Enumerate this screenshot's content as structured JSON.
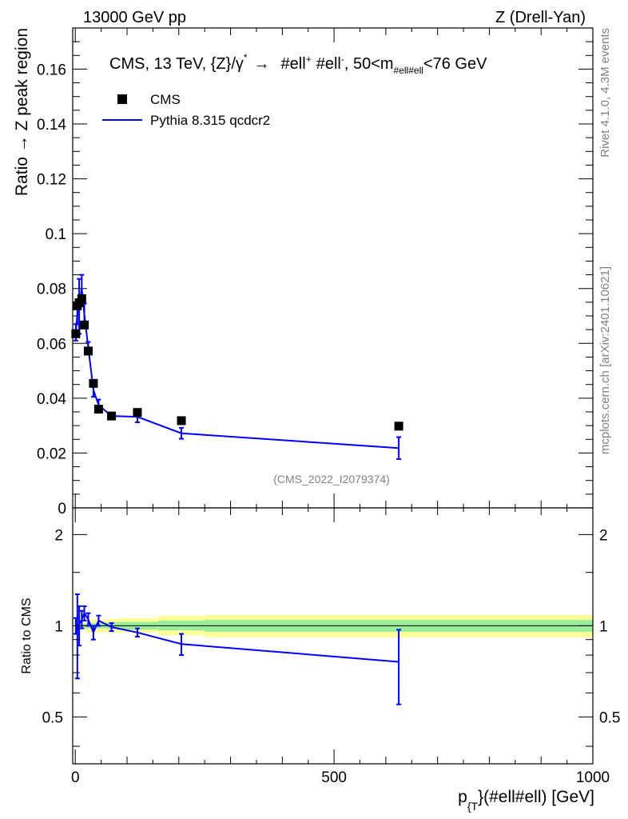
{
  "header": {
    "left": "13000 GeV pp",
    "right": "Z (Drell-Yan)"
  },
  "side_text": {
    "rivet": "Rivet 4.1.0,  4.3M events",
    "source": "mcplots.cern.ch [arXiv:2401.10621]"
  },
  "colors": {
    "mc": "#0000ff",
    "data": "#000000",
    "band_outer": "#ffff99",
    "band_inner": "#99ee99",
    "watermark": "#808080"
  },
  "chart_data": [
    {
      "type": "line",
      "panel": "main",
      "title": "CMS, 13 TeV, {Z}/γ* → #ell+ #ell-, 50<m_{#ell#ell}<76 GeV",
      "title_parts": {
        "prefix": "CMS, 13 TeV, {Z}/γ",
        "star": "*",
        "arrow": "→",
        "lep1": "#ell",
        "plus": "+",
        "lep2": "#ell",
        "minus": "-",
        "mass": ", 50<m",
        "mass_sub": "#ell#ell",
        "mass_tail": "<76 GeV"
      },
      "watermark": "(CMS_2022_I2079374)",
      "ylabel": "Ratio → Z peak region",
      "xlim": [
        -5,
        1000
      ],
      "ylim": [
        0,
        0.175
      ],
      "yticks": [
        0,
        0.02,
        0.04,
        0.06,
        0.08,
        0.1,
        0.12,
        0.14,
        0.16
      ],
      "ytick_labels": [
        "0",
        "0.02",
        "0.04",
        "0.06",
        "0.08",
        "0.1",
        "0.12",
        "0.14",
        "0.16"
      ],
      "legend_position": "top-left",
      "legend": [
        {
          "name": "CMS",
          "style": "marker"
        },
        {
          "name": "Pythia 8.315 qcdcr2",
          "style": "line"
        }
      ],
      "series": [
        {
          "name": "CMS",
          "kind": "data",
          "x": [
            1,
            4,
            7.5,
            12.5,
            17.5,
            25,
            35,
            45,
            70,
            120,
            205,
            625
          ],
          "y": [
            0.0635,
            0.0737,
            0.0748,
            0.0763,
            0.0667,
            0.0572,
            0.0454,
            0.036,
            0.0335,
            0.0348,
            0.0318,
            0.0298
          ]
        },
        {
          "name": "Pythia 8.315 qcdcr2",
          "kind": "mc",
          "x": [
            1,
            4,
            7.5,
            12.5,
            17.5,
            25,
            35,
            45,
            70,
            120,
            205,
            625
          ],
          "y": [
            0.064,
            0.071,
            0.0735,
            0.08,
            0.0705,
            0.0585,
            0.043,
            0.0375,
            0.0335,
            0.0332,
            0.0272,
            0.0218
          ],
          "err": [
            0.003,
            0.004,
            0.01,
            0.005,
            0.004,
            0.002,
            0.0025,
            0.002,
            0.001,
            0.002,
            0.002,
            0.004
          ]
        }
      ]
    },
    {
      "type": "line",
      "panel": "ratio",
      "ylabel": "Ratio to CMS",
      "xlabel": "p_{T}(#ell#ell) [GeV]",
      "xlabel_parts": {
        "p": "p",
        "sub": "{T",
        "rest": "}(#ell#ell) [GeV]"
      },
      "xlim": [
        -5,
        1000
      ],
      "ylim": [
        0.35,
        2.45
      ],
      "xticks": [
        0,
        500,
        1000
      ],
      "xtick_labels": [
        "0",
        "500",
        "1000"
      ],
      "yticks": [
        0.5,
        1,
        2
      ],
      "ytick_labels": [
        "0.5",
        "1",
        "2"
      ],
      "bands": {
        "edges": [
          0,
          20,
          40,
          60,
          80,
          160,
          250,
          1000
        ],
        "outer": [
          [
            0.97,
            1.03
          ],
          [
            0.95,
            1.05
          ],
          [
            0.95,
            1.05
          ],
          [
            0.95,
            1.05
          ],
          [
            0.95,
            1.06
          ],
          [
            0.93,
            1.08
          ],
          [
            0.915,
            1.085
          ]
        ],
        "inner": [
          [
            0.985,
            1.015
          ],
          [
            0.98,
            1.02
          ],
          [
            0.98,
            1.02
          ],
          [
            0.975,
            1.025
          ],
          [
            0.97,
            1.03
          ],
          [
            0.965,
            1.04
          ],
          [
            0.955,
            1.045
          ]
        ]
      },
      "series": [
        {
          "name": "Pythia 8.315 qcdcr2",
          "x": [
            1,
            4,
            7.5,
            12.5,
            17.5,
            25,
            35,
            45,
            70,
            120,
            205,
            625
          ],
          "y": [
            1.0,
            0.97,
            1.01,
            1.05,
            1.1,
            1.05,
            0.95,
            1.04,
            0.99,
            0.95,
            0.87,
            0.76
          ],
          "err": [
            0.06,
            0.3,
            0.15,
            0.07,
            0.06,
            0.05,
            0.05,
            0.04,
            0.03,
            0.03,
            0.07,
            0.21
          ]
        }
      ]
    }
  ]
}
